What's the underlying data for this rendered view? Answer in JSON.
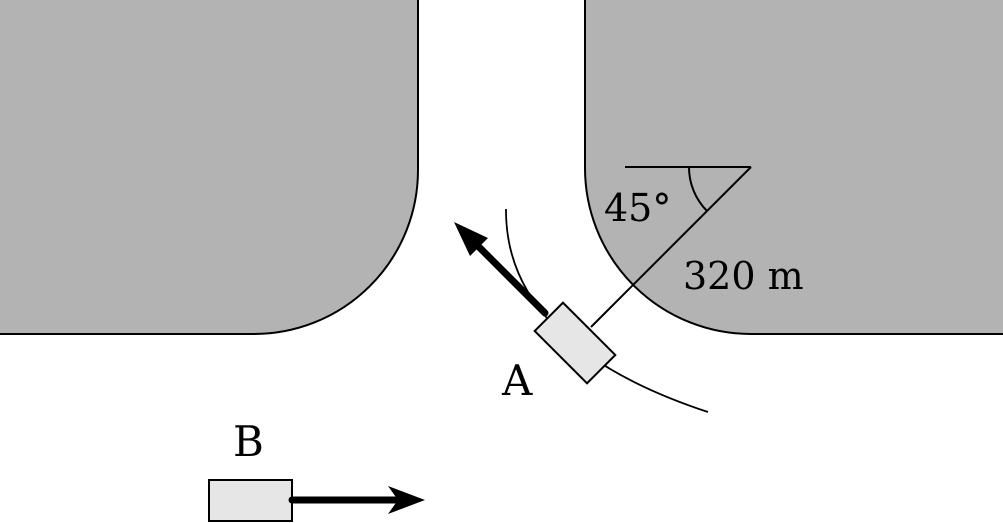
{
  "labels": {
    "angle": "45°",
    "radius": "320 m",
    "car_a": "A",
    "car_b": "B"
  },
  "colors": {
    "block_fill": "#b3b3b3",
    "car_fill": "#e6e6e6",
    "stroke": "#000000",
    "background": "#ffffff"
  }
}
